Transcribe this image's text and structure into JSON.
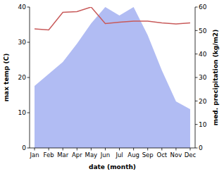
{
  "chart_data": {
    "type": "line",
    "x_label": "date (month)",
    "y_label": "max temp (C)",
    "y2_label": "med. precipitation (kg/m2)",
    "categories": [
      "Jan",
      "Feb",
      "Mar",
      "Apr",
      "May",
      "Jun",
      "Jul",
      "Aug",
      "Sep",
      "Oct",
      "Nov",
      "Dec"
    ],
    "ylim": [
      0,
      40
    ],
    "yticks": [
      0,
      10,
      20,
      30,
      40
    ],
    "y2lim": [
      0,
      60
    ],
    "y2ticks": [
      0,
      10,
      20,
      30,
      40,
      50,
      60
    ],
    "series": [
      {
        "name": "med. precipitation",
        "type": "area",
        "axis": "y2",
        "color": "#b1bcf3",
        "values": [
          26.4,
          31.5,
          36.6,
          44.4,
          53,
          60,
          56.4,
          60,
          48,
          33,
          19.8,
          16.5
        ]
      },
      {
        "name": "max temp",
        "type": "line",
        "axis": "y",
        "color": "#c85a5a",
        "values": [
          33.8,
          33.5,
          38.5,
          38.7,
          40,
          35.3,
          35.7,
          36,
          36,
          35.5,
          35.2,
          35.5
        ]
      }
    ]
  }
}
